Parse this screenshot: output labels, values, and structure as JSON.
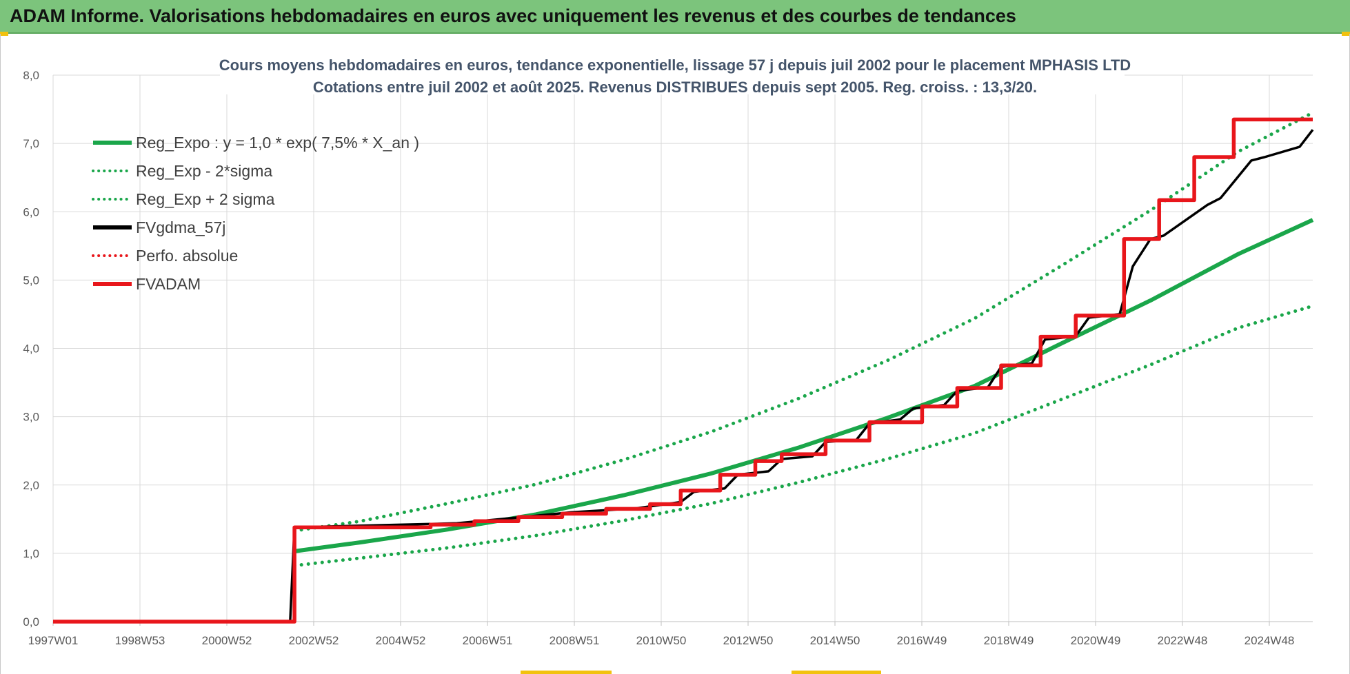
{
  "header": {
    "title": "ADAM Informe. Valorisations hebdomadaires en euros avec uniquement les revenus et des courbes de tendances"
  },
  "colors": {
    "header_bg": "#7cc47c",
    "green": "#1aa64a",
    "red": "#e8161b",
    "black": "#000000",
    "grid": "#d9d9d9"
  },
  "chart_data": {
    "type": "line",
    "title_line1": "Cours moyens hebdomadaires en euros, tendance exponentielle, lissage 57 j depuis juil 2002 pour le placement MPHASIS LTD",
    "title_line2": "Cotations entre juil 2002 et août 2025. Revenus DISTRIBUES depuis sept 2005. Reg. croiss. : 13,3/20.",
    "x_ticks": [
      "1997W01",
      "1998W53",
      "2000W52",
      "2002W52",
      "2004W52",
      "2006W51",
      "2008W51",
      "2010W50",
      "2012W50",
      "2014W50",
      "2016W49",
      "2018W49",
      "2020W49",
      "2022W48",
      "2024W48"
    ],
    "x_range": [
      1997.0,
      2025.7
    ],
    "ylim": [
      0,
      8
    ],
    "y_ticks": [
      "0,0",
      "1,0",
      "2,0",
      "3,0",
      "4,0",
      "5,0",
      "6,0",
      "7,0",
      "8,0"
    ],
    "grid": true,
    "legend_position": "top-left",
    "legend": [
      {
        "label": "Reg_Expo : y = 1,0 * exp( 7,5% *  X_an )",
        "color": "#1aa64a",
        "style": "solid"
      },
      {
        "label": "Reg_Exp - 2*sigma",
        "color": "#1aa64a",
        "style": "dotted"
      },
      {
        "label": "Reg_Exp + 2 sigma",
        "color": "#1aa64a",
        "style": "dotted"
      },
      {
        "label": "FVgdma_57j",
        "color": "#000000",
        "style": "solid"
      },
      {
        "label": "Perfo. absolue",
        "color": "#e8161b",
        "style": "dotted"
      },
      {
        "label": "FVADAM",
        "color": "#e8161b",
        "style": "solid"
      }
    ],
    "series": [
      {
        "name": "Reg_Expo : y = 1,0 * exp( 7,5% *  X_an )",
        "x": [
          2002.5,
          2004.0,
          2006.0,
          2008.0,
          2010.0,
          2012.0,
          2014.0,
          2016.0,
          2018.0,
          2020.0,
          2022.0,
          2024.0,
          2025.7
        ],
        "y": [
          1.03,
          1.16,
          1.35,
          1.57,
          1.85,
          2.17,
          2.55,
          2.98,
          3.45,
          4.08,
          4.7,
          5.38,
          5.88
        ]
      },
      {
        "name": "Reg_Exp - 2*sigma",
        "x": [
          2002.5,
          2004.0,
          2006.0,
          2008.0,
          2010.0,
          2012.0,
          2014.0,
          2016.0,
          2018.0,
          2020.0,
          2022.0,
          2024.0,
          2025.7
        ],
        "y": [
          0.82,
          0.93,
          1.08,
          1.26,
          1.48,
          1.73,
          2.04,
          2.38,
          2.76,
          3.26,
          3.76,
          4.3,
          4.62
        ]
      },
      {
        "name": "Reg_Exp + 2 sigma",
        "x": [
          2002.5,
          2004.0,
          2006.0,
          2008.0,
          2010.0,
          2012.0,
          2014.0,
          2016.0,
          2018.0,
          2020.0,
          2022.0,
          2024.0,
          2025.7
        ],
        "y": [
          1.33,
          1.47,
          1.73,
          2.01,
          2.37,
          2.78,
          3.27,
          3.82,
          4.44,
          5.22,
          6.02,
          6.88,
          7.45
        ]
      },
      {
        "name": "FVgdma_57j",
        "x": [
          1997.0,
          2002.4,
          2002.5,
          2006.2,
          2007.7,
          2008.8,
          2010.3,
          2011.3,
          2011.6,
          2012.3,
          2012.6,
          2013.3,
          2013.6,
          2014.3,
          2014.6,
          2015.3,
          2015.6,
          2016.3,
          2016.6,
          2017.3,
          2017.6,
          2018.3,
          2018.6,
          2019.3,
          2019.6,
          2020.3,
          2020.6,
          2021.3,
          2021.6,
          2022.0,
          2022.3,
          2023.3,
          2023.6,
          2024.3,
          2024.6,
          2025.4,
          2025.7
        ],
        "y": [
          0.0,
          0.0,
          1.38,
          1.44,
          1.53,
          1.6,
          1.66,
          1.75,
          1.9,
          1.95,
          2.15,
          2.2,
          2.38,
          2.42,
          2.63,
          2.66,
          2.9,
          2.96,
          3.12,
          3.17,
          3.38,
          3.43,
          3.73,
          3.78,
          4.13,
          4.18,
          4.45,
          4.5,
          5.2,
          5.6,
          5.65,
          6.1,
          6.2,
          6.75,
          6.8,
          6.95,
          7.2
        ]
      },
      {
        "name": "FVADAM",
        "x": [
          1997.0,
          2002.5,
          2002.5,
          2005.6,
          2005.6,
          2006.6,
          2006.6,
          2007.6,
          2007.6,
          2008.6,
          2008.6,
          2009.6,
          2009.6,
          2010.6,
          2010.6,
          2011.3,
          2011.3,
          2012.2,
          2012.2,
          2013.0,
          2013.0,
          2013.6,
          2013.6,
          2014.6,
          2014.6,
          2015.6,
          2015.6,
          2016.8,
          2016.8,
          2017.6,
          2017.6,
          2018.6,
          2018.6,
          2019.5,
          2019.5,
          2020.3,
          2020.3,
          2021.4,
          2021.4,
          2022.2,
          2022.2,
          2023.0,
          2023.0,
          2023.9,
          2023.9,
          2024.7,
          2024.7,
          2025.55,
          2025.55,
          2025.7
        ],
        "y": [
          0.0,
          0.0,
          1.38,
          1.38,
          1.42,
          1.42,
          1.47,
          1.47,
          1.53,
          1.53,
          1.58,
          1.58,
          1.65,
          1.65,
          1.72,
          1.72,
          1.92,
          1.92,
          2.15,
          2.15,
          2.35,
          2.35,
          2.45,
          2.45,
          2.65,
          2.65,
          2.92,
          2.92,
          3.15,
          3.15,
          3.42,
          3.42,
          3.75,
          3.75,
          4.17,
          4.17,
          4.48,
          4.48,
          5.6,
          5.6,
          6.17,
          6.17,
          6.8,
          6.8,
          7.35,
          7.35,
          7.35,
          7.35,
          7.35,
          7.35
        ]
      }
    ]
  }
}
